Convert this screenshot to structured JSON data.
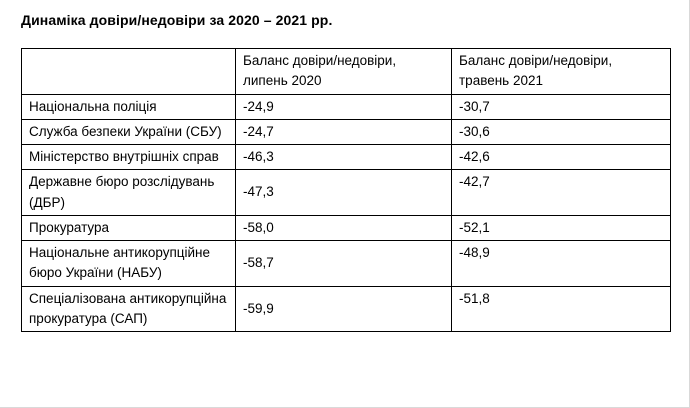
{
  "title": "Динаміка довіри/недовіри за 2020 – 2021 рр.",
  "table": {
    "headers": {
      "institution": "",
      "jul_2020": "Баланс довіри/недовіри, липень 2020",
      "may_2021": "Баланс довіри/недовіри, травень 2021"
    },
    "rows": [
      {
        "name": "Національна поліція",
        "jul_2020": "-24,9",
        "may_2021": "-30,7"
      },
      {
        "name": "Служба безпеки України (СБУ)",
        "jul_2020": "-24,7",
        "may_2021": "-30,6"
      },
      {
        "name": "Міністерство внутрішніх справ",
        "jul_2020": "-46,3",
        "may_2021": "-42,6"
      },
      {
        "name": "Державне бюро розслідувань (ДБР)",
        "jul_2020": "-47,3",
        "may_2021": "-42,7"
      },
      {
        "name": "Прокуратура",
        "jul_2020": "-58,0",
        "may_2021": "-52,1"
      },
      {
        "name": "Національне антикорупційне бюро України (НАБУ)",
        "jul_2020": "-58,7",
        "may_2021": "-48,9"
      },
      {
        "name": "Спеціалізована антикорупційна прокуратура (САП)",
        "jul_2020": "-59,9",
        "may_2021": "-51,8"
      }
    ]
  }
}
